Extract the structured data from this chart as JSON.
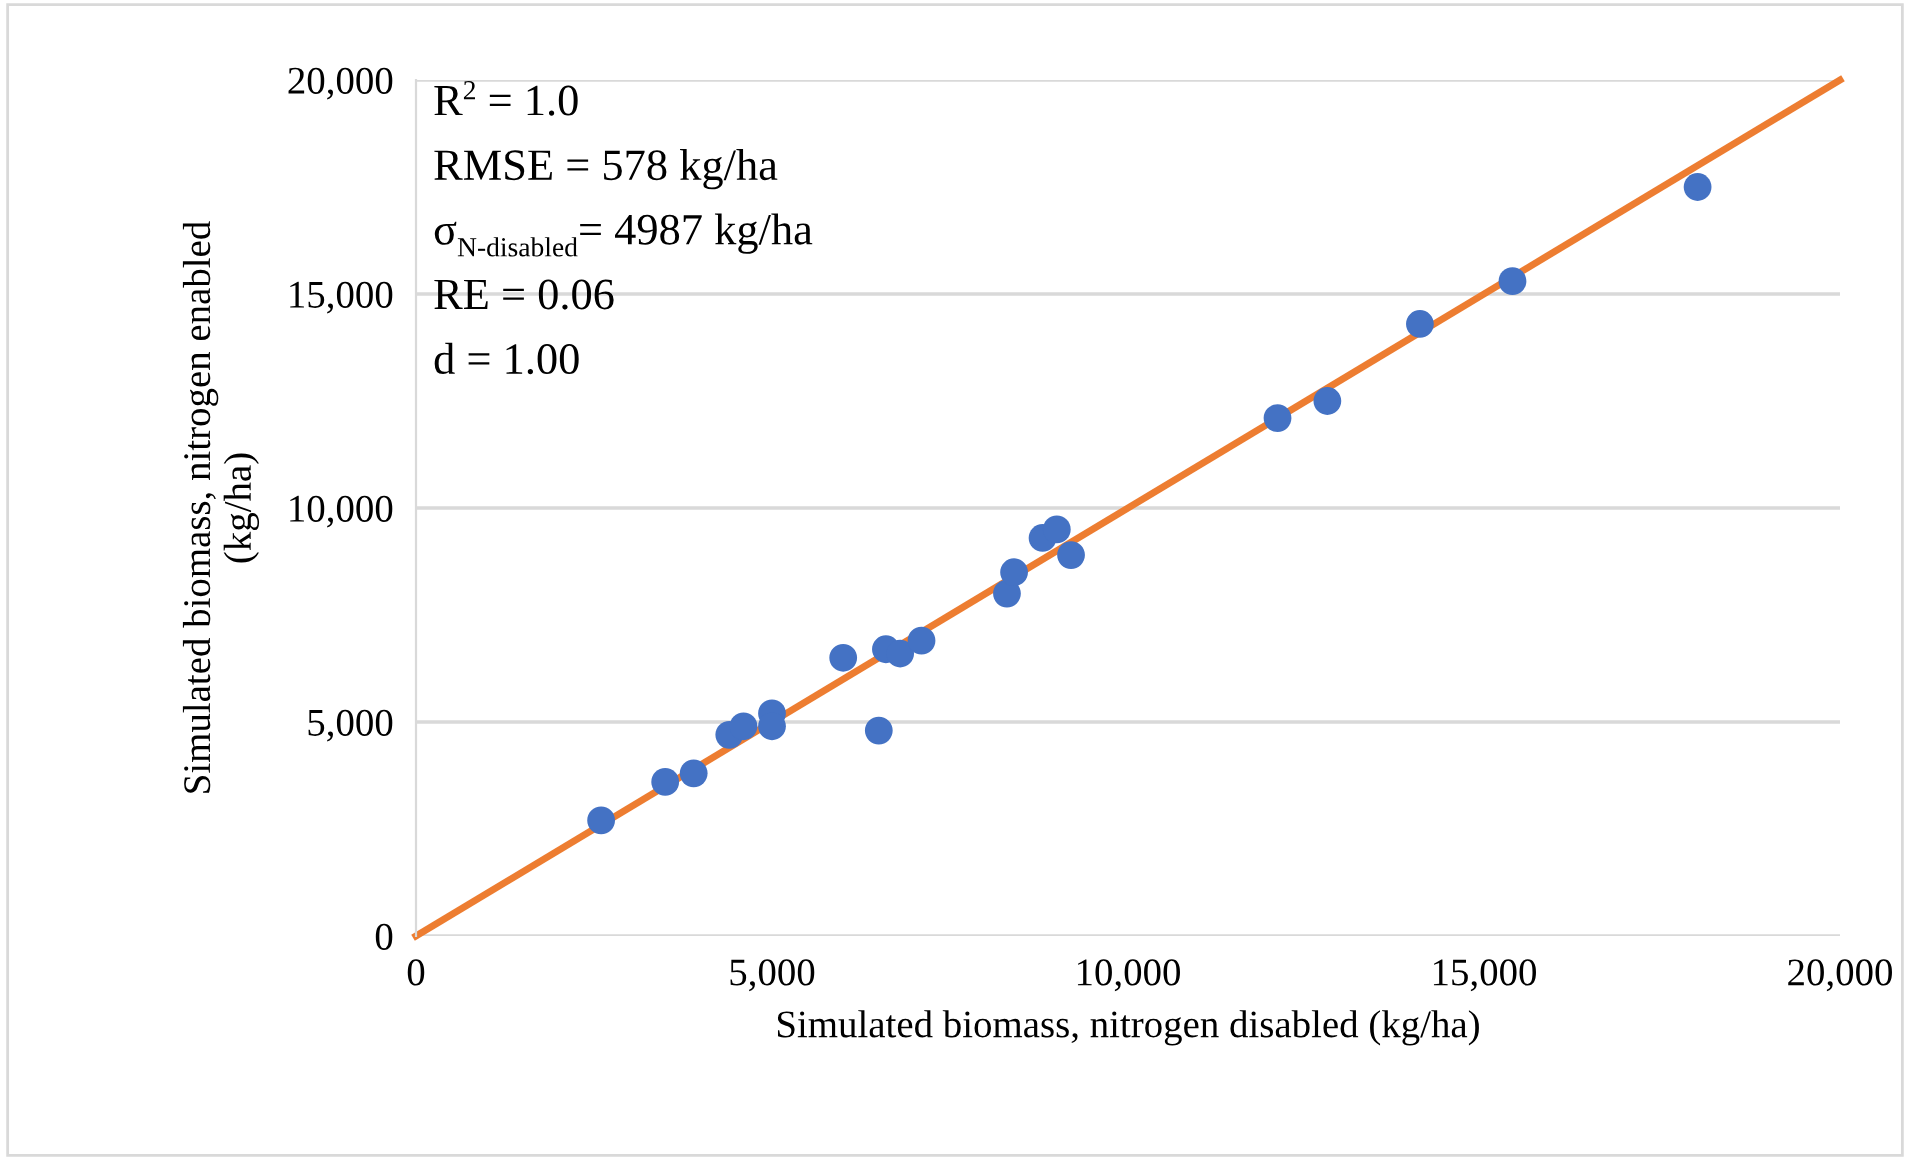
{
  "chart_data": {
    "type": "scatter",
    "xlabel": "Simulated biomass, nitrogen disabled (kg/ha)",
    "ylabel": "Simulated biomass, nitrogen enabled\n(kg/ha)",
    "xlim": [
      0,
      20000
    ],
    "ylim": [
      0,
      20000
    ],
    "xticks": [
      {
        "value": 0,
        "label": "0"
      },
      {
        "value": 5000,
        "label": "5,000"
      },
      {
        "value": 10000,
        "label": "10,000"
      },
      {
        "value": 15000,
        "label": "15,000"
      },
      {
        "value": 20000,
        "label": "20,000"
      }
    ],
    "yticks": [
      {
        "value": 0,
        "label": "0"
      },
      {
        "value": 5000,
        "label": "5,000"
      },
      {
        "value": 10000,
        "label": "10,000"
      },
      {
        "value": 15000,
        "label": "15,000"
      },
      {
        "value": 20000,
        "label": "20,000"
      }
    ],
    "grid": "y",
    "legend": false,
    "annotations": [
      "R$^{2}$ = 1.0",
      "RMSE = 578 kg/ha",
      "σ$_{N-disabled}$= 4987 kg/ha",
      "RE = 0.06",
      "d = 1.00"
    ],
    "series": [
      {
        "color": "#4472c4",
        "marker": "circle",
        "x": [
          2600,
          3500,
          3900,
          4400,
          4600,
          5000,
          5000,
          6000,
          6500,
          6600,
          6800,
          7100,
          8300,
          8400,
          8800,
          9000,
          9200,
          12100,
          12800,
          14100,
          15400,
          18000
        ],
        "values": [
          2700,
          3600,
          3800,
          4700,
          4900,
          5200,
          4900,
          6500,
          4800,
          6700,
          6600,
          6900,
          8000,
          8500,
          9300,
          9500,
          8900,
          12100,
          12500,
          14300,
          15300,
          17500
        ]
      },
      {
        "type": "line",
        "color": "#ed7d31",
        "marker": "none",
        "line_style": "solid",
        "x": [
          0,
          20000
        ],
        "values": [
          0,
          20000
        ]
      }
    ]
  }
}
